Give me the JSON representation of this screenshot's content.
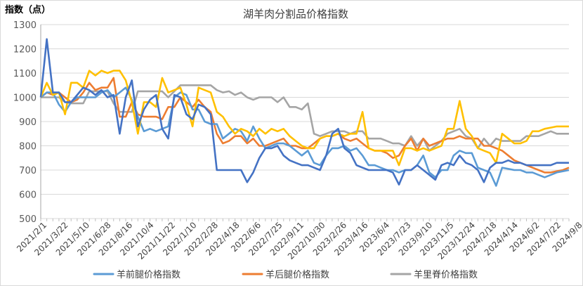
{
  "chart_data": {
    "type": "line",
    "title": "湖羊肉分割品价格指数",
    "ylabel": "指数（点）",
    "xlabel": "",
    "ylim": [
      500,
      1300
    ],
    "yticks": [
      500,
      600,
      700,
      800,
      900,
      1000,
      1100,
      1200,
      1300
    ],
    "grid": true,
    "legend_position": "bottom",
    "x_tick_labels": [
      "2021/2/1",
      "2021/3/22",
      "2021/5/10",
      "2021/6/28",
      "2021/8/16",
      "2021/10/4",
      "2021/11/22",
      "2022/1/10",
      "2022/2/28",
      "2022/4/18",
      "2022/6/6",
      "2022/7/25",
      "2022/9/11",
      "2022/10/30",
      "2023/2/26",
      "2023/4/16",
      "2023/6/4",
      "2023/7/23",
      "2023/9/10",
      "2023/11/5",
      "2023/12/24",
      "2024/2/18",
      "2024/4/14",
      "2024/6/2",
      "2024/7/22",
      "2024/9/8"
    ],
    "series": [
      {
        "name": "羊前腿价格指数",
        "color": "#5B9BD5",
        "in_legend": true,
        "values": [
          1000,
          1020,
          1020,
          970,
          940,
          980,
          1000,
          1000,
          1000,
          1000,
          1020,
          1030,
          1000,
          1020,
          1040,
          990,
          920,
          860,
          870,
          860,
          870,
          880,
          1000,
          1020,
          1010,
          950,
          950,
          900,
          890,
          890,
          830,
          850,
          870,
          860,
          820,
          880,
          830,
          790,
          800,
          810,
          810,
          800,
          780,
          760,
          780,
          730,
          720,
          760,
          790,
          790,
          800,
          780,
          790,
          760,
          720,
          720,
          710,
          700,
          700,
          690,
          700,
          700,
          720,
          760,
          690,
          670,
          700,
          700,
          760,
          780,
          770,
          770,
          710,
          700,
          690,
          635,
          710,
          705,
          700,
          700,
          690,
          690,
          680,
          670,
          680,
          690,
          695,
          700
        ]
      },
      {
        "name": "羊后腿价格指数",
        "color": "#ED7D31",
        "in_legend": true,
        "values": [
          1000,
          1020,
          1010,
          1020,
          1000,
          980,
          990,
          1020,
          1060,
          1030,
          1040,
          1040,
          1080,
          920,
          920,
          980,
          930,
          920,
          920,
          920,
          910,
          960,
          960,
          1000,
          980,
          960,
          990,
          960,
          940,
          850,
          810,
          820,
          840,
          840,
          810,
          830,
          800,
          800,
          810,
          820,
          830,
          800,
          800,
          790,
          790,
          810,
          830,
          840,
          840,
          850,
          830,
          820,
          830,
          810,
          790,
          780,
          780,
          770,
          750,
          760,
          800,
          830,
          780,
          830,
          800,
          810,
          820,
          830,
          830,
          840,
          830,
          830,
          830,
          800,
          800,
          790,
          780,
          760,
          740,
          730,
          720,
          710,
          700,
          690,
          690,
          695,
          700,
          710
        ]
      },
      {
        "name": "羊里脊价格指数",
        "color": "#A5A5A5",
        "in_legend": true,
        "values": [
          1000,
          1000,
          1000,
          1000,
          980,
          975,
          975,
          975,
          1025,
          1025,
          1025,
          1025,
          975,
          940,
          940,
          940,
          1025,
          1025,
          1025,
          1025,
          1025,
          1000,
          1025,
          1050,
          1050,
          1050,
          1050,
          1050,
          1050,
          1030,
          1020,
          1025,
          1010,
          1020,
          1000,
          990,
          1000,
          1000,
          1000,
          980,
          1000,
          960,
          960,
          950,
          975,
          850,
          840,
          850,
          860,
          860,
          860,
          850,
          860,
          860,
          830,
          830,
          830,
          820,
          810,
          810,
          800,
          840,
          800,
          830,
          780,
          800,
          820,
          850,
          860,
          870,
          840,
          830,
          790,
          830,
          800,
          830,
          820,
          820,
          820,
          820,
          840,
          840,
          840,
          850,
          860,
          850,
          850,
          850
        ]
      },
      {
        "name": "",
        "color": "#4472C4",
        "in_legend": false,
        "values": [
          1000,
          1240,
          1020,
          1020,
          980,
          980,
          1010,
          1040,
          1030,
          1010,
          1030,
          1000,
          1010,
          850,
          1000,
          1070,
          880,
          950,
          990,
          1010,
          870,
          830,
          1010,
          1000,
          930,
          910,
          970,
          960,
          930,
          700,
          700,
          700,
          700,
          700,
          650,
          690,
          750,
          790,
          790,
          800,
          760,
          740,
          730,
          720,
          720,
          710,
          700,
          760,
          850,
          870,
          790,
          770,
          720,
          710,
          700,
          700,
          700,
          700,
          690,
          640,
          700,
          700,
          720,
          700,
          680,
          660,
          720,
          730,
          720,
          760,
          730,
          720,
          700,
          650,
          710,
          730,
          730,
          740,
          730,
          730,
          720,
          720,
          720,
          720,
          720,
          730,
          730,
          730
        ]
      },
      {
        "name": "",
        "color": "#FFC000",
        "in_legend": false,
        "values": [
          1000,
          1060,
          1010,
          1020,
          930,
          1060,
          1060,
          1040,
          1110,
          1090,
          1110,
          1100,
          1110,
          1110,
          1070,
          980,
          850,
          980,
          980,
          960,
          1080,
          1020,
          1030,
          1040,
          970,
          880,
          1040,
          1030,
          1020,
          940,
          920,
          880,
          850,
          870,
          860,
          840,
          870,
          850,
          870,
          860,
          870,
          840,
          820,
          800,
          790,
          790,
          830,
          840,
          840,
          850,
          840,
          850,
          850,
          940,
          790,
          780,
          780,
          780,
          780,
          720,
          790,
          790,
          780,
          790,
          780,
          790,
          800,
          870,
          870,
          985,
          870,
          840,
          790,
          780,
          770,
          730,
          850,
          830,
          810,
          810,
          820,
          860,
          860,
          870,
          875,
          880,
          880,
          880
        ]
      }
    ]
  }
}
